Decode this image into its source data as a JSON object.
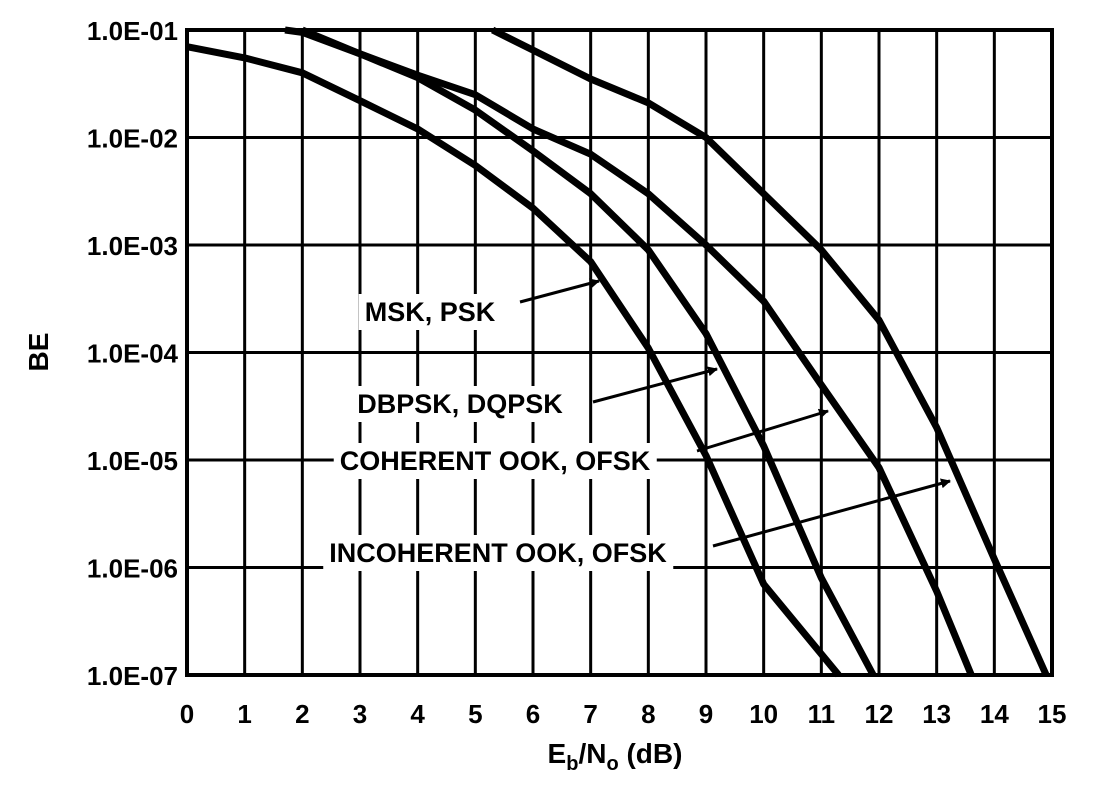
{
  "chart_data": {
    "type": "line",
    "xlabel_main": "E",
    "xlabel_sub1": "b",
    "xlabel_mid": "/N",
    "xlabel_sub2": "o",
    "xlabel_tail": " (dB)",
    "ylabel": "BE",
    "xlim": [
      0,
      15
    ],
    "ylim_exponent": [
      -7,
      -1
    ],
    "y_scale": "log",
    "grid": true,
    "x_ticks": [
      "0",
      "1",
      "2",
      "3",
      "4",
      "5",
      "6",
      "7",
      "8",
      "9",
      "10",
      "11",
      "12",
      "13",
      "14",
      "15"
    ],
    "y_ticks": [
      "1.0E-01",
      "1.0E-02",
      "1.0E-03",
      "1.0E-04",
      "1.0E-05",
      "1.0E-06",
      "1.0E-07"
    ],
    "series": [
      {
        "name": "MSK, PSK",
        "x": [
          0,
          1,
          2,
          3,
          4,
          5,
          6,
          7,
          8,
          9,
          10,
          11.3
        ],
        "y": [
          0.07,
          0.055,
          0.04,
          0.022,
          0.012,
          0.0055,
          0.0022,
          0.0007,
          0.00011,
          1.1e-05,
          7e-07,
          1e-07
        ]
      },
      {
        "name": "DBPSK, DQPSK",
        "x": [
          1.7,
          2,
          3,
          4,
          5,
          6,
          7,
          8,
          9,
          10,
          11,
          11.9
        ],
        "y": [
          0.1,
          0.095,
          0.06,
          0.036,
          0.018,
          0.0075,
          0.003,
          0.0009,
          0.00015,
          1.35e-05,
          8e-07,
          1e-07
        ]
      },
      {
        "name": "COHERENT OOK, OFSK",
        "x": [
          2,
          3,
          4,
          5,
          6,
          7,
          8,
          9,
          10,
          11,
          12,
          13,
          13.6
        ],
        "y": [
          0.1,
          0.06,
          0.038,
          0.025,
          0.012,
          0.007,
          0.003,
          0.001,
          0.0003,
          5e-05,
          8.5e-06,
          6e-07,
          1e-07
        ]
      },
      {
        "name": "INCOHERENT OOK, OFSK",
        "x": [
          5.3,
          6,
          7,
          8,
          9,
          10,
          11,
          12,
          13,
          14,
          14.9
        ],
        "y": [
          0.1,
          0.065,
          0.035,
          0.021,
          0.01,
          0.003,
          0.0009,
          0.0002,
          2e-05,
          1.2e-06,
          1e-07
        ]
      }
    ],
    "annotations": [
      {
        "text": "MSK, PSK",
        "target_series": 0
      },
      {
        "text": "DBPSK, DQPSK",
        "target_series": 1
      },
      {
        "text": "COHERENT OOK, OFSK",
        "target_series": 2
      },
      {
        "text": "INCOHERENT OOK, OFSK",
        "target_series": 3
      }
    ]
  }
}
